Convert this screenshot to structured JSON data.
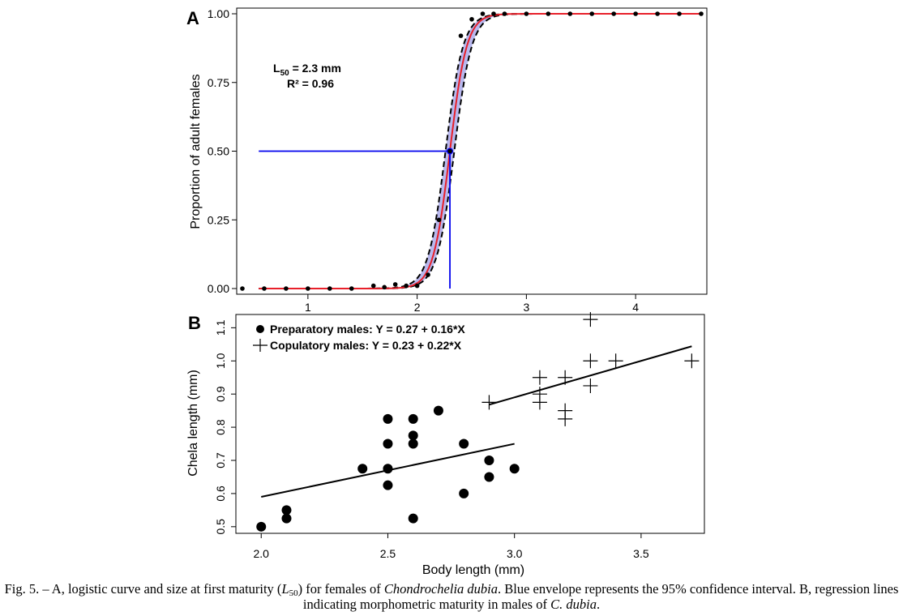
{
  "chart_data": [
    {
      "panel_label": "A",
      "type": "line",
      "ylabel": "Proportion of adult females",
      "xlabel": "",
      "xlim": [
        0.4,
        4.6
      ],
      "ylim": [
        0,
        1
      ],
      "xticks": [
        "1",
        "2",
        "3",
        "4"
      ],
      "yticks": [
        "0.00",
        "0.25",
        "0.50",
        "0.75",
        "1.00"
      ],
      "annotation": {
        "l50_prefix": "L",
        "l50_sub": "50",
        "l50_value": " = 2.3 mm",
        "r2": "R² = 0.96"
      },
      "l50": 2.3,
      "logistic": {
        "l50": 2.3,
        "slope": 13
      },
      "ci_band": {
        "lower": {
          "l50": 2.34,
          "slope": 12.5
        },
        "upper": {
          "l50": 2.26,
          "slope": 12.5
        }
      },
      "points": {
        "x": [
          0.4,
          0.6,
          0.8,
          1.0,
          1.2,
          1.4,
          1.6,
          1.7,
          1.8,
          1.9,
          2.0,
          2.1,
          2.2,
          2.3,
          2.4,
          2.5,
          2.6,
          2.7,
          2.8,
          3.0,
          3.2,
          3.4,
          3.6,
          3.8,
          4.0,
          4.2,
          4.4,
          4.6
        ],
        "y": [
          0,
          0,
          0,
          0,
          0,
          0,
          0.01,
          0.005,
          0.015,
          0.01,
          0.01,
          0.05,
          0.25,
          0.5,
          0.92,
          0.98,
          1.0,
          1.0,
          1.0,
          1.0,
          1.0,
          1.0,
          1.0,
          1.0,
          1.0,
          1.0,
          1.0,
          1.0
        ]
      },
      "colors": {
        "curve": "#e8202a",
        "band": "#b8b8ee",
        "ci": "#000000",
        "marker": "#0000ee",
        "points": "#000000"
      }
    },
    {
      "panel_label": "B",
      "type": "scatter",
      "xlabel": "Body length (mm)",
      "ylabel": "Chela length (mm)",
      "xlim": [
        1.9,
        3.75
      ],
      "ylim": [
        0.48,
        1.14
      ],
      "xticks": [
        "2.0",
        "2.5",
        "3.0",
        "3.5"
      ],
      "yticks": [
        "0.5",
        "0.6",
        "0.7",
        "0.8",
        "0.9",
        "1.0",
        "1.1"
      ],
      "legend_position": "top-left",
      "series": [
        {
          "name": "Preparatory males: Y = 0.27 + 0.16*X",
          "marker": "circle",
          "x": [
            2.0,
            2.1,
            2.1,
            2.4,
            2.5,
            2.5,
            2.5,
            2.5,
            2.6,
            2.6,
            2.6,
            2.6,
            2.7,
            2.8,
            2.8,
            2.9,
            2.9,
            3.0
          ],
          "y": [
            0.5,
            0.525,
            0.55,
            0.675,
            0.825,
            0.75,
            0.675,
            0.625,
            0.825,
            0.775,
            0.75,
            0.525,
            0.85,
            0.75,
            0.6,
            0.7,
            0.65,
            0.675
          ],
          "fit": {
            "intercept": 0.27,
            "slope": 0.16,
            "x_range": [
              2.0,
              3.0
            ]
          }
        },
        {
          "name": "Copulatory males: Y = 0.23 + 0.22*X",
          "marker": "plus",
          "x": [
            2.9,
            3.1,
            3.1,
            3.1,
            3.2,
            3.2,
            3.2,
            3.3,
            3.3,
            3.3,
            3.4,
            3.7
          ],
          "y": [
            0.875,
            0.95,
            0.9,
            0.875,
            0.95,
            0.85,
            0.825,
            1.125,
            1.0,
            0.925,
            1.0,
            1.0
          ],
          "fit": {
            "intercept": 0.23,
            "slope": 0.22,
            "x_range": [
              2.9,
              3.7
            ]
          }
        }
      ]
    }
  ],
  "caption": {
    "fig": "Fig. 5. – A, logistic curve and size at first maturity (",
    "l50_italic": "L",
    "l50_sub": "50",
    "after_l50": ") for females of ",
    "species": "Chondrochelia dubia",
    "middle": ". Blue envelope represents the 95% confidence interval. B, regression lines indicating morphometric maturity in males of ",
    "species_short": "C. dubia",
    "end": "."
  }
}
